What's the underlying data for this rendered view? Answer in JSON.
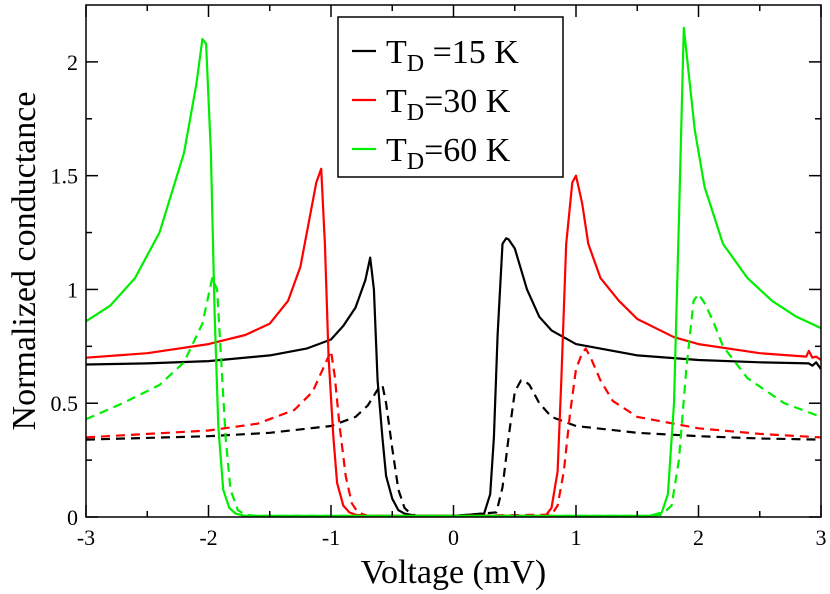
{
  "chart_data": {
    "type": "line",
    "title": "",
    "xlabel": "Voltage (mV)",
    "ylabel": "Normalized conductance",
    "xlim": [
      -3,
      3
    ],
    "ylim": [
      0,
      2.25
    ],
    "xticks": [
      -3,
      -2,
      -1,
      0,
      1,
      2,
      3
    ],
    "xtick_labels": [
      "-3",
      "-2",
      "-1",
      "0",
      "1",
      "2",
      "3"
    ],
    "yticks": [
      0,
      0.5,
      1,
      1.5,
      2
    ],
    "ytick_labels": [
      "0",
      "0.5",
      "1",
      "1.5",
      "2"
    ],
    "grid": false,
    "legend_position": "top-center",
    "series": [
      {
        "name": "T_D =15 K",
        "label_main": "T",
        "label_sub": "D",
        "label_rest": " =15 K",
        "color": "#000000",
        "dash": "solid",
        "in_legend": true,
        "x": [
          -3,
          -2.5,
          -2,
          -1.5,
          -1.2,
          -1.0,
          -0.9,
          -0.8,
          -0.72,
          -0.68,
          -0.65,
          -0.62,
          -0.58,
          -0.55,
          -0.5,
          -0.45,
          -0.4,
          -0.3,
          0,
          0.25,
          0.3,
          0.33,
          0.36,
          0.4,
          0.43,
          0.45,
          0.5,
          0.6,
          0.7,
          0.8,
          1.0,
          1.5,
          2.0,
          2.5,
          2.9,
          2.93,
          2.96,
          3.0
        ],
        "y": [
          0.67,
          0.675,
          0.685,
          0.71,
          0.74,
          0.78,
          0.84,
          0.92,
          1.04,
          1.14,
          1.0,
          0.6,
          0.35,
          0.18,
          0.08,
          0.03,
          0.015,
          0.005,
          0.005,
          0.015,
          0.1,
          0.35,
          0.8,
          1.2,
          1.225,
          1.22,
          1.18,
          1.0,
          0.88,
          0.82,
          0.76,
          0.71,
          0.69,
          0.68,
          0.675,
          0.665,
          0.68,
          0.65
        ]
      },
      {
        "name": "T_D =15 K (dashed)",
        "color": "#000000",
        "dash": "dashed",
        "in_legend": false,
        "x": [
          -3,
          -2,
          -1.5,
          -1.0,
          -0.8,
          -0.7,
          -0.62,
          -0.58,
          -0.55,
          -0.5,
          -0.45,
          -0.4,
          -0.35,
          -0.3,
          0,
          0.35,
          0.4,
          0.45,
          0.5,
          0.55,
          0.58,
          0.62,
          0.7,
          0.8,
          1.0,
          1.5,
          2.0,
          2.5,
          3.0
        ],
        "y": [
          0.34,
          0.355,
          0.37,
          0.4,
          0.44,
          0.49,
          0.56,
          0.58,
          0.5,
          0.3,
          0.12,
          0.04,
          0.015,
          0.005,
          0.005,
          0.02,
          0.13,
          0.35,
          0.55,
          0.6,
          0.6,
          0.58,
          0.5,
          0.44,
          0.4,
          0.37,
          0.355,
          0.345,
          0.34
        ]
      },
      {
        "name": "T_D =30 K",
        "label_main": "T",
        "label_sub": "D",
        "label_rest": "=30 K",
        "color": "#ff0000",
        "dash": "solid",
        "in_legend": true,
        "x": [
          -3,
          -2.5,
          -2,
          -1.7,
          -1.5,
          -1.35,
          -1.25,
          -1.18,
          -1.12,
          -1.08,
          -1.05,
          -1.02,
          -0.98,
          -0.95,
          -0.9,
          -0.85,
          -0.8,
          -0.7,
          0.75,
          0.8,
          0.85,
          0.88,
          0.92,
          0.97,
          1.0,
          1.05,
          1.1,
          1.2,
          1.35,
          1.5,
          1.8,
          2.0,
          2.5,
          2.88,
          2.9,
          2.93,
          2.96,
          3.0
        ],
        "y": [
          0.7,
          0.72,
          0.76,
          0.8,
          0.85,
          0.95,
          1.1,
          1.3,
          1.47,
          1.53,
          1.2,
          0.7,
          0.35,
          0.15,
          0.05,
          0.02,
          0.01,
          0.005,
          0.005,
          0.04,
          0.2,
          0.6,
          1.2,
          1.47,
          1.5,
          1.38,
          1.2,
          1.05,
          0.95,
          0.87,
          0.79,
          0.76,
          0.72,
          0.705,
          0.73,
          0.7,
          0.705,
          0.69
        ]
      },
      {
        "name": "T_D =30 K (dashed)",
        "color": "#ff0000",
        "dash": "dashed",
        "in_legend": false,
        "x": [
          -3,
          -2,
          -1.6,
          -1.3,
          -1.15,
          -1.05,
          -1.0,
          -0.97,
          -0.93,
          -0.88,
          -0.83,
          -0.78,
          -0.7,
          0,
          0.8,
          0.85,
          0.9,
          0.95,
          1.0,
          1.05,
          1.08,
          1.12,
          1.2,
          1.3,
          1.5,
          2.0,
          2.5,
          3.0
        ],
        "y": [
          0.35,
          0.38,
          0.41,
          0.47,
          0.55,
          0.67,
          0.73,
          0.62,
          0.4,
          0.18,
          0.06,
          0.02,
          0.005,
          0.005,
          0.01,
          0.05,
          0.2,
          0.45,
          0.65,
          0.72,
          0.74,
          0.7,
          0.6,
          0.51,
          0.44,
          0.39,
          0.365,
          0.35
        ]
      },
      {
        "name": "T_D =60 K",
        "label_main": "T",
        "label_sub": "D",
        "label_rest": "=60 K",
        "color": "#00ee00",
        "dash": "solid",
        "in_legend": true,
        "x": [
          -3,
          -2.8,
          -2.6,
          -2.4,
          -2.2,
          -2.1,
          -2.05,
          -2.02,
          -1.98,
          -1.95,
          -1.92,
          -1.88,
          -1.83,
          -1.78,
          -1.7,
          -1.6,
          1.6,
          1.7,
          1.75,
          1.8,
          1.84,
          1.88,
          1.92,
          1.97,
          2.05,
          2.2,
          2.4,
          2.6,
          2.8,
          3.0
        ],
        "y": [
          0.86,
          0.93,
          1.05,
          1.25,
          1.6,
          1.9,
          2.1,
          2.08,
          1.6,
          0.9,
          0.4,
          0.12,
          0.04,
          0.015,
          0.005,
          0.005,
          0.005,
          0.02,
          0.1,
          0.5,
          1.3,
          2.15,
          1.95,
          1.7,
          1.45,
          1.2,
          1.05,
          0.95,
          0.88,
          0.83
        ]
      },
      {
        "name": "T_D =60 K (dashed)",
        "color": "#00ee00",
        "dash": "dashed",
        "in_legend": false,
        "x": [
          -3,
          -2.7,
          -2.4,
          -2.2,
          -2.05,
          -1.97,
          -1.93,
          -1.9,
          -1.86,
          -1.82,
          -1.76,
          -1.7,
          -1.6,
          1.6,
          1.7,
          1.78,
          1.84,
          1.9,
          1.96,
          2.0,
          2.05,
          2.12,
          2.2,
          2.4,
          2.7,
          3.0
        ],
        "y": [
          0.43,
          0.5,
          0.58,
          0.68,
          0.85,
          1.05,
          1.0,
          0.72,
          0.35,
          0.12,
          0.03,
          0.01,
          0.005,
          0.005,
          0.01,
          0.05,
          0.25,
          0.65,
          0.95,
          0.98,
          0.94,
          0.86,
          0.75,
          0.61,
          0.5,
          0.44
        ]
      }
    ]
  }
}
